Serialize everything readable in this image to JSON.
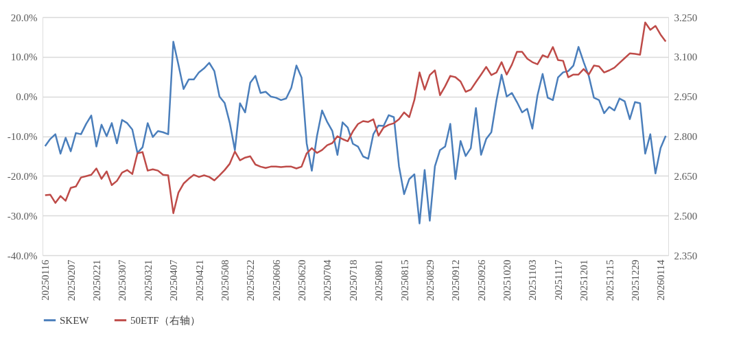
{
  "chart_data": {
    "type": "line",
    "categories": [
      "20250116",
      null,
      null,
      null,
      null,
      "20250207",
      null,
      null,
      null,
      null,
      "20250221",
      null,
      null,
      null,
      null,
      "20250307",
      null,
      null,
      null,
      null,
      "20250321",
      null,
      null,
      null,
      null,
      "20250407",
      null,
      null,
      null,
      null,
      "20250421",
      null,
      null,
      null,
      null,
      "20250508",
      null,
      null,
      null,
      null,
      "20250522",
      null,
      null,
      null,
      null,
      "20250606",
      null,
      null,
      null,
      null,
      "20250620",
      null,
      null,
      null,
      null,
      "20250704",
      null,
      null,
      null,
      null,
      "20250718",
      null,
      null,
      null,
      null,
      "20250801",
      null,
      null,
      null,
      null,
      "20250815",
      null,
      null,
      null,
      null,
      "20250829",
      null,
      null,
      null,
      null,
      "20250912",
      null,
      null,
      null,
      null,
      "20250926",
      null,
      null,
      null,
      null,
      "20251020",
      null,
      null,
      null,
      null,
      "20251103",
      null,
      null,
      null,
      null,
      "20251117",
      null,
      null,
      null,
      null,
      "20251201",
      null,
      null,
      null,
      null,
      "20251215",
      null,
      null,
      null,
      null,
      "20251229",
      null,
      null,
      null,
      null,
      "20260114",
      null
    ],
    "series": [
      {
        "name": "SKEW",
        "color": "#4a7ebb",
        "values": [
          -12.5,
          -10.7,
          -9.5,
          -14.4,
          -10.4,
          -13.8,
          -9.2,
          -9.5,
          -6.9,
          -4.8,
          -12.6,
          -7.1,
          -10.0,
          -6.7,
          -11.8,
          -5.9,
          -6.7,
          -8.3,
          -14.2,
          -12.8,
          -6.7,
          -10.2,
          -8.7,
          -9.0,
          -9.5,
          13.8,
          8.0,
          1.9,
          4.3,
          4.3,
          6.1,
          7.1,
          8.5,
          6.4,
          0.0,
          -1.6,
          -6.6,
          -13.5,
          -1.7,
          -4.0,
          3.5,
          5.2,
          0.9,
          1.2,
          0.0,
          -0.3,
          -0.9,
          -0.5,
          2.2,
          7.8,
          4.8,
          -11.8,
          -18.7,
          -10.0,
          -3.5,
          -6.4,
          -8.7,
          -14.7,
          -6.5,
          -7.8,
          -11.9,
          -12.6,
          -15.1,
          -15.7,
          -9.5,
          -7.3,
          -7.4,
          -4.7,
          -5.2,
          -17.6,
          -24.6,
          -20.8,
          -19.6,
          -32.0,
          -18.5,
          -31.3,
          -17.6,
          -13.5,
          -12.6,
          -6.9,
          -20.8,
          -11.2,
          -15.0,
          -13.0,
          -2.9,
          -14.7,
          -10.7,
          -9.0,
          -1.0,
          5.5,
          0.0,
          0.9,
          -1.4,
          -4.0,
          -3.1,
          -8.1,
          0.3,
          5.7,
          -0.3,
          -0.9,
          4.8,
          6.1,
          6.4,
          7.8,
          12.5,
          8.7,
          5.2,
          -0.3,
          -0.9,
          -4.2,
          -2.6,
          -3.5,
          -0.5,
          -1.2,
          -5.7,
          -1.4,
          -1.7,
          -14.4,
          -9.5,
          -19.4,
          -13.0,
          -9.9
        ]
      },
      {
        "name": "50ETF（右轴）",
        "color": "#be4b48",
        "axis": "y2",
        "values": [
          2.577,
          2.579,
          2.548,
          2.574,
          2.556,
          2.605,
          2.61,
          2.644,
          2.649,
          2.654,
          2.678,
          2.639,
          2.667,
          2.615,
          2.631,
          2.662,
          2.672,
          2.657,
          2.735,
          2.74,
          2.67,
          2.675,
          2.67,
          2.654,
          2.652,
          2.509,
          2.587,
          2.621,
          2.639,
          2.654,
          2.646,
          2.652,
          2.646,
          2.633,
          2.652,
          2.672,
          2.696,
          2.742,
          2.709,
          2.719,
          2.724,
          2.693,
          2.685,
          2.68,
          2.685,
          2.685,
          2.683,
          2.685,
          2.685,
          2.678,
          2.685,
          2.735,
          2.755,
          2.737,
          2.748,
          2.766,
          2.774,
          2.8,
          2.789,
          2.781,
          2.818,
          2.846,
          2.857,
          2.854,
          2.864,
          2.802,
          2.833,
          2.843,
          2.849,
          2.864,
          2.89,
          2.872,
          2.937,
          3.041,
          2.976,
          3.031,
          3.049,
          2.955,
          2.989,
          3.028,
          3.023,
          3.007,
          2.968,
          2.976,
          3.005,
          3.033,
          3.062,
          3.031,
          3.041,
          3.08,
          3.033,
          3.07,
          3.119,
          3.119,
          3.093,
          3.08,
          3.072,
          3.106,
          3.098,
          3.137,
          3.088,
          3.085,
          3.023,
          3.033,
          3.033,
          3.054,
          3.033,
          3.067,
          3.064,
          3.041,
          3.049,
          3.059,
          3.077,
          3.095,
          3.113,
          3.111,
          3.108,
          3.23,
          3.202,
          3.217,
          3.184,
          3.158
        ]
      }
    ],
    "ylim": [
      -40,
      20
    ],
    "yticks": [
      {
        "value": -40,
        "label": "-40.0%"
      },
      {
        "value": -30,
        "label": "-30.0%"
      },
      {
        "value": -20,
        "label": "-20.0%"
      },
      {
        "value": -10,
        "label": "-10.0%"
      },
      {
        "value": 0,
        "label": "0.0%"
      },
      {
        "value": 10,
        "label": "10.0%"
      },
      {
        "value": 20,
        "label": "20.0%"
      }
    ],
    "y2lim": [
      2.35,
      3.25
    ],
    "y2ticks": [
      {
        "value": 2.35,
        "label": "2.350"
      },
      {
        "value": 2.5,
        "label": "2.500"
      },
      {
        "value": 2.65,
        "label": "2.650"
      },
      {
        "value": 2.8,
        "label": "2.800"
      },
      {
        "value": 2.95,
        "label": "2.950"
      },
      {
        "value": 3.1,
        "label": "3.100"
      },
      {
        "value": 3.25,
        "label": "3.250"
      }
    ],
    "grid": "y",
    "legend": "bottom",
    "marker": "none",
    "line_style": "solid"
  }
}
